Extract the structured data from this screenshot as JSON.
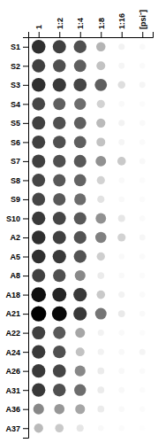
{
  "chart_data": {
    "type": "heatmap",
    "rows": [
      "S1",
      "S2",
      "S3",
      "S4",
      "S5",
      "S6",
      "S7",
      "S8",
      "S9",
      "S10",
      "A2",
      "A5",
      "A8",
      "A18",
      "A21",
      "A22",
      "A24",
      "A26",
      "A31",
      "A36",
      "A37"
    ],
    "categories": [
      "1",
      "1:2",
      "1:4",
      "1:8",
      "1:16",
      "[psi⁻]"
    ],
    "values": [
      [
        0.85,
        0.8,
        0.75,
        0.4,
        0.1,
        0.05
      ],
      [
        0.8,
        0.75,
        0.7,
        0.35,
        0.08,
        0.04
      ],
      [
        0.85,
        0.82,
        0.78,
        0.7,
        0.22,
        0.08
      ],
      [
        0.78,
        0.7,
        0.65,
        0.28,
        0.05,
        0.03
      ],
      [
        0.8,
        0.75,
        0.7,
        0.38,
        0.1,
        0.05
      ],
      [
        0.8,
        0.75,
        0.7,
        0.35,
        0.08,
        0.04
      ],
      [
        0.8,
        0.75,
        0.72,
        0.52,
        0.32,
        0.06
      ],
      [
        0.78,
        0.72,
        0.68,
        0.28,
        0.05,
        0.03
      ],
      [
        0.78,
        0.72,
        0.65,
        0.2,
        0.05,
        0.03
      ],
      [
        0.82,
        0.78,
        0.72,
        0.52,
        0.18,
        0.04
      ],
      [
        0.85,
        0.8,
        0.74,
        0.58,
        0.28,
        0.07
      ],
      [
        0.85,
        0.82,
        0.74,
        0.3,
        0.05,
        0.04
      ],
      [
        0.8,
        0.75,
        0.55,
        0.15,
        0.05,
        0.03
      ],
      [
        0.95,
        0.88,
        0.82,
        0.32,
        0.1,
        0.04
      ],
      [
        1.0,
        0.97,
        0.82,
        0.62,
        0.16,
        0.05
      ],
      [
        0.8,
        0.72,
        0.45,
        0.1,
        0.05,
        0.03
      ],
      [
        0.82,
        0.75,
        0.35,
        0.1,
        0.06,
        0.09
      ],
      [
        0.82,
        0.78,
        0.55,
        0.15,
        0.06,
        0.04
      ],
      [
        0.82,
        0.75,
        0.65,
        0.15,
        0.06,
        0.03
      ],
      [
        0.55,
        0.5,
        0.45,
        0.15,
        0.05,
        0.03
      ],
      [
        0.38,
        0.32,
        0.18,
        0.05,
        0.03,
        0.02
      ]
    ]
  }
}
